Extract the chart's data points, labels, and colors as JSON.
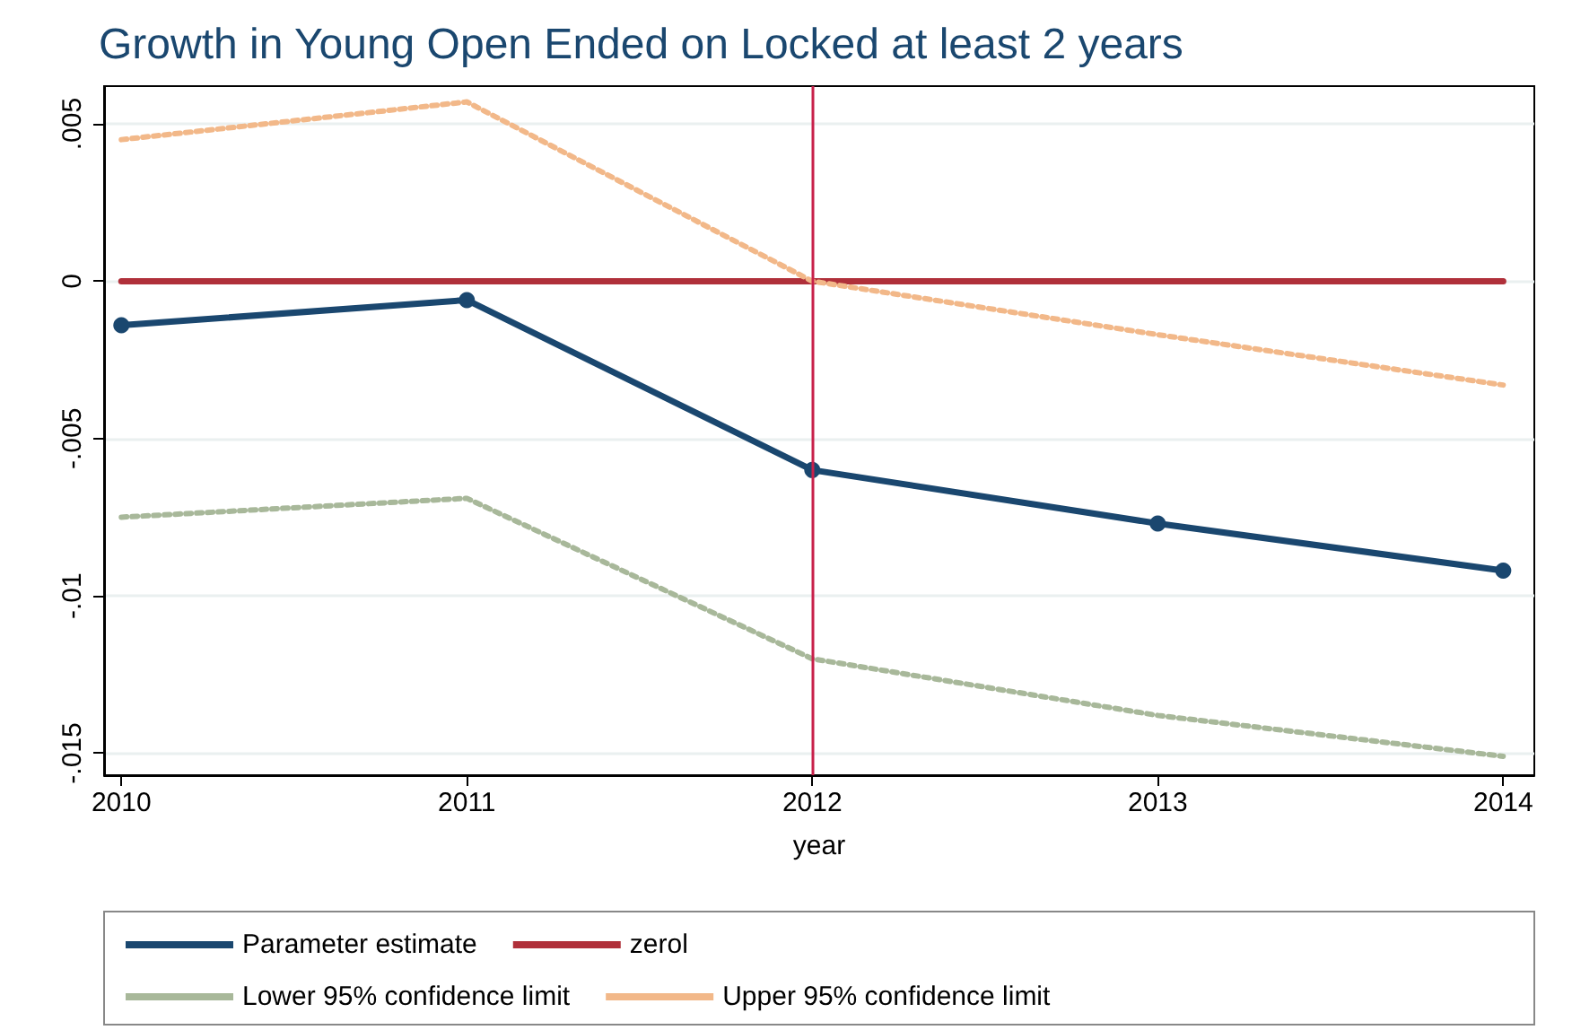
{
  "chart_data": {
    "type": "line",
    "title": "Growth in Young Open Ended on Locked at least 2 years",
    "xlabel": "year",
    "x": [
      2010,
      2011,
      2012,
      2013,
      2014
    ],
    "series": [
      {
        "name": "Parameter estimate",
        "color": "#1a476f",
        "values": [
          -0.0014,
          -0.0006,
          -0.006,
          -0.0077,
          -0.0092
        ],
        "marker": "circle",
        "line_style": "solid"
      },
      {
        "name": "zerol",
        "color": "#b0303a",
        "values": [
          0,
          0,
          0,
          0,
          0
        ],
        "marker": "none",
        "line_style": "solid"
      },
      {
        "name": "Lower 95% confidence limit",
        "color": "#a8b89a",
        "values": [
          -0.0075,
          -0.0069,
          -0.012,
          -0.0138,
          -0.0151
        ],
        "marker": "none",
        "line_style": "dotted"
      },
      {
        "name": "Upper 95% confidence limit",
        "color": "#f2b889",
        "values": [
          0.0045,
          0.0057,
          0,
          -0.0017,
          -0.0033
        ],
        "marker": "none",
        "line_style": "dotted"
      }
    ],
    "ref_lines": [
      {
        "axis": "x",
        "value": 2012,
        "color": "#c8204a"
      }
    ],
    "xlim": [
      2009.95,
      2014.09
    ],
    "xticks": [
      2010,
      2011,
      2012,
      2013,
      2014
    ],
    "ylim": [
      -0.0157,
      0.0062
    ],
    "yticks": [
      {
        "value": -0.015,
        "label": "-.015"
      },
      {
        "value": -0.01,
        "label": "-.01"
      },
      {
        "value": -0.005,
        "label": "-.005"
      },
      0,
      {
        "value": 0.005,
        "label": ".005"
      }
    ],
    "grid": "y",
    "legend": "bottom"
  }
}
